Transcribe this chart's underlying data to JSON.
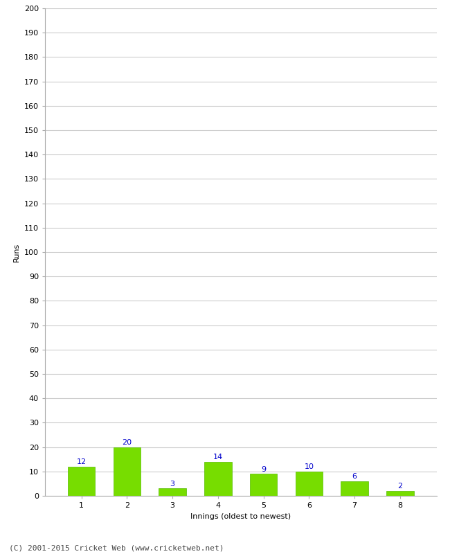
{
  "categories": [
    "1",
    "2",
    "3",
    "4",
    "5",
    "6",
    "7",
    "8"
  ],
  "values": [
    12,
    20,
    3,
    14,
    9,
    10,
    6,
    2
  ],
  "bar_color": "#77dd00",
  "bar_edge_color": "#55bb00",
  "label_color": "#0000cc",
  "xlabel": "Innings (oldest to newest)",
  "ylabel": "Runs",
  "ylim": [
    0,
    200
  ],
  "yticks": [
    0,
    10,
    20,
    30,
    40,
    50,
    60,
    70,
    80,
    90,
    100,
    110,
    120,
    130,
    140,
    150,
    160,
    170,
    180,
    190,
    200
  ],
  "background_color": "#ffffff",
  "grid_color": "#cccccc",
  "footer": "(C) 2001-2015 Cricket Web (www.cricketweb.net)",
  "label_fontsize": 8,
  "axis_label_fontsize": 8,
  "tick_fontsize": 8,
  "footer_fontsize": 8
}
